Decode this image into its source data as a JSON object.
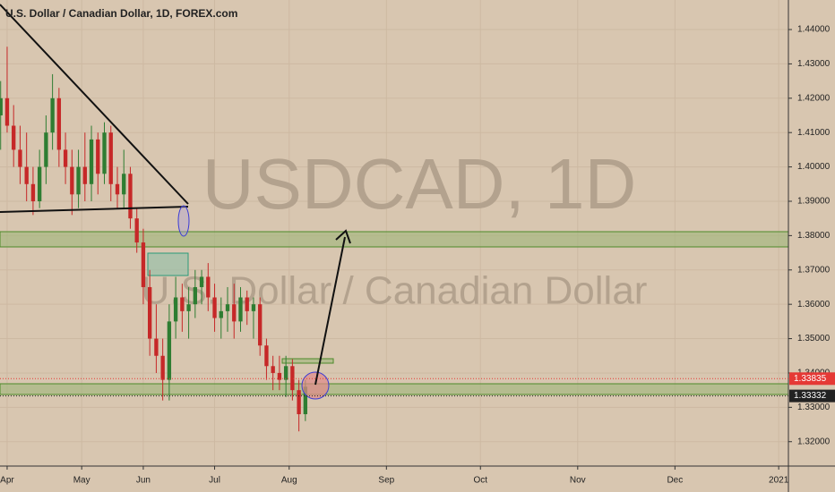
{
  "chart_data": {
    "type": "candlestick",
    "title": "U.S. Dollar / Canadian Dollar, 1D, FOREX.com",
    "watermark": "USDCAD, 1D",
    "watermark_subtitle": "U.S. Dollar / Canadian Dollar",
    "x": [
      -2,
      0,
      2,
      4,
      6,
      8,
      10,
      12,
      14,
      16,
      18,
      20,
      22,
      24,
      26,
      28,
      30,
      32,
      34,
      36,
      38,
      40,
      42,
      44,
      46,
      48,
      50,
      52,
      54,
      56,
      58,
      60,
      62,
      64,
      66,
      68,
      70,
      72,
      74,
      76,
      78,
      80,
      82,
      84,
      86,
      88,
      90,
      92
    ],
    "open": [
      1.415,
      1.42,
      1.412,
      1.405,
      1.4,
      1.395,
      1.39,
      1.4,
      1.41,
      1.42,
      1.405,
      1.4,
      1.392,
      1.4,
      1.395,
      1.408,
      1.398,
      1.41,
      1.395,
      1.392,
      1.398,
      1.385,
      1.378,
      1.365,
      1.35,
      1.345,
      1.338,
      1.355,
      1.362,
      1.358,
      1.36,
      1.365,
      1.368,
      1.362,
      1.356,
      1.358,
      1.36,
      1.355,
      1.362,
      1.358,
      1.36,
      1.348,
      1.342,
      1.34,
      1.338,
      1.342,
      1.335,
      1.328
    ],
    "high": [
      1.425,
      1.435,
      1.418,
      1.412,
      1.41,
      1.4,
      1.405,
      1.415,
      1.427,
      1.423,
      1.41,
      1.405,
      1.405,
      1.41,
      1.412,
      1.41,
      1.413,
      1.412,
      1.4,
      1.405,
      1.4,
      1.388,
      1.382,
      1.37,
      1.36,
      1.35,
      1.36,
      1.368,
      1.366,
      1.365,
      1.37,
      1.37,
      1.372,
      1.366,
      1.362,
      1.365,
      1.366,
      1.365,
      1.364,
      1.362,
      1.362,
      1.35,
      1.345,
      1.345,
      1.345,
      1.344,
      1.338,
      1.338
    ],
    "low": [
      1.405,
      1.41,
      1.4,
      1.395,
      1.39,
      1.386,
      1.388,
      1.395,
      1.405,
      1.4,
      1.395,
      1.386,
      1.388,
      1.39,
      1.39,
      1.392,
      1.395,
      1.39,
      1.388,
      1.388,
      1.382,
      1.375,
      1.36,
      1.345,
      1.34,
      1.332,
      1.332,
      1.35,
      1.352,
      1.35,
      1.356,
      1.36,
      1.358,
      1.352,
      1.35,
      1.352,
      1.35,
      1.352,
      1.354,
      1.35,
      1.345,
      1.338,
      1.335,
      1.335,
      1.333,
      1.332,
      1.323,
      1.326
    ],
    "close": [
      1.42,
      1.412,
      1.405,
      1.4,
      1.395,
      1.39,
      1.4,
      1.41,
      1.42,
      1.405,
      1.4,
      1.392,
      1.4,
      1.395,
      1.408,
      1.398,
      1.41,
      1.395,
      1.392,
      1.398,
      1.385,
      1.378,
      1.365,
      1.35,
      1.345,
      1.338,
      1.355,
      1.362,
      1.358,
      1.36,
      1.365,
      1.368,
      1.362,
      1.356,
      1.358,
      1.36,
      1.355,
      1.362,
      1.358,
      1.36,
      1.348,
      1.342,
      1.34,
      1.338,
      1.342,
      1.335,
      1.328,
      1.336
    ],
    "up_color": "#2e7d32",
    "down_color": "#c62828",
    "xlim": [
      -2.2,
      241
    ],
    "xticks": [
      {
        "value": 0,
        "label": "Apr"
      },
      {
        "value": 23,
        "label": "May"
      },
      {
        "value": 42,
        "label": "Jun"
      },
      {
        "value": 64,
        "label": "Jul"
      },
      {
        "value": 87,
        "label": "Aug"
      },
      {
        "value": 117,
        "label": "Sep"
      },
      {
        "value": 146,
        "label": "Oct"
      },
      {
        "value": 176,
        "label": "Nov"
      },
      {
        "value": 206,
        "label": "Dec"
      },
      {
        "value": 238,
        "label": "2021"
      }
    ],
    "ylim": [
      1.3129,
      1.4486
    ],
    "yticks": [
      {
        "value": 1.32,
        "label": "1.32000"
      },
      {
        "value": 1.33,
        "label": "1.33000"
      },
      {
        "value": 1.34,
        "label": "1.34000"
      },
      {
        "value": 1.35,
        "label": "1.35000"
      },
      {
        "value": 1.36,
        "label": "1.36000"
      },
      {
        "value": 1.37,
        "label": "1.37000"
      },
      {
        "value": 1.38,
        "label": "1.38000"
      },
      {
        "value": 1.39,
        "label": "1.39000"
      },
      {
        "value": 1.4,
        "label": "1.40000"
      },
      {
        "value": 1.41,
        "label": "1.41000"
      },
      {
        "value": 1.42,
        "label": "1.42000"
      },
      {
        "value": 1.43,
        "label": "1.43000"
      },
      {
        "value": 1.44,
        "label": "1.44000"
      }
    ],
    "price_lines": [
      {
        "value": 1.33835,
        "label": "1.33835",
        "color": "#e53935"
      },
      {
        "value": 1.33332,
        "label": "1.33332",
        "color": "#222222"
      }
    ]
  }
}
